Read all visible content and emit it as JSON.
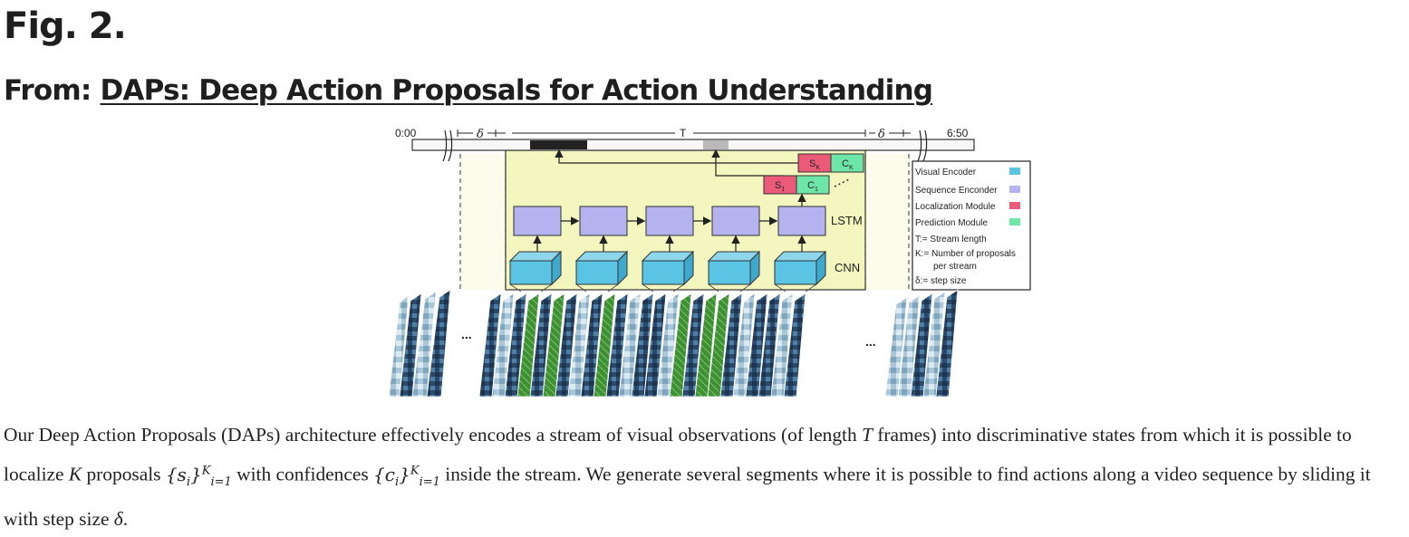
{
  "header": {
    "figure_label": "Fig. 2.",
    "from_prefix": "From:",
    "paper_title": "DAPs: Deep Action Proposals for Action Understanding"
  },
  "diagram": {
    "time_start": "0:00",
    "time_end": "6:50",
    "delta": "δ",
    "stream_label": "T",
    "lstm_label": "LSTM",
    "cnn_label": "CNN",
    "s1": "S1",
    "c1": "C1",
    "sk": "SK",
    "ck": "CK",
    "ellipsis_left": "...",
    "ellipsis_right": "...",
    "legend": {
      "visual_encoder": "Visual Encoder",
      "sequence_encoder": "Sequence Enconder",
      "localization_module": "Localization Module",
      "prediction_module": "Prediction Module",
      "t_def": "T:= Stream length",
      "k_def_1": "K:= Number of proposals",
      "k_def_2": "per stream",
      "delta_def": "δ:= step size"
    },
    "colors": {
      "stream_bg": "#f3f7bf",
      "visual_encoder": "#5bc3e3",
      "sequence_encoder": "#b5b2f0",
      "localization_module": "#ec5a7a",
      "prediction_module": "#6ee6a8"
    }
  },
  "caption": {
    "part1": "Our Deep Action Proposals (DAPs) architecture effectively encodes a stream of visual observations (of length ",
    "T": "T",
    "part2": " frames) into discriminative states from which it is possible to localize ",
    "K": "K",
    "part3": " proposals ",
    "s_set": "{s",
    "part4": " with confidences ",
    "c_set": "{c",
    "part5": " inside the stream. We generate several segments where it is possible to find actions along a video sequence by sliding it with step size ",
    "delta": "δ",
    "part6": "."
  }
}
